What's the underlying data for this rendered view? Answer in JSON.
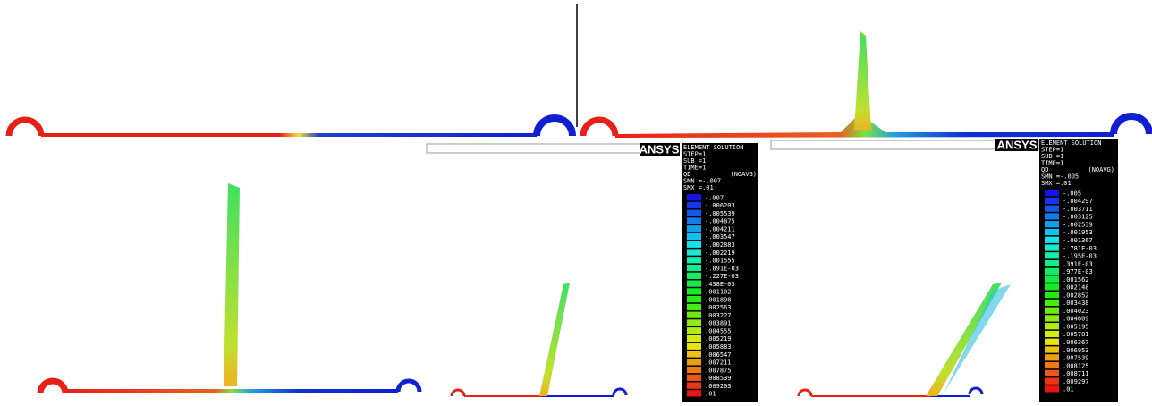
{
  "panels": [
    {
      "logo": "ANSYS",
      "legend": {
        "title": "ELEMENT SOLUTION",
        "step": "STEP=1",
        "sub": "SUB =1",
        "time": "TIME=1",
        "quantity": "QD",
        "averaging": "(NOAVG)",
        "smn": "SMN =-.007",
        "smx": "SMX =.01",
        "levels": [
          "-.007",
          "-.006203",
          "-.005539",
          "-.004875",
          "-.004211",
          "-.003547",
          "-.002883",
          "-.002219",
          "-.001555",
          "-.891E-03",
          "-.227E-03",
          ".438E-03",
          ".001102",
          ".001898",
          ".002563",
          ".003227",
          ".003891",
          ".004555",
          ".005219",
          ".005883",
          ".006547",
          ".007211",
          ".007875",
          ".008539",
          ".009203",
          ".01"
        ]
      }
    },
    {
      "logo": "ANSYS",
      "legend": {
        "title": "ELEMENT SOLUTION",
        "step": "STEP=1",
        "sub": "SUB =1",
        "time": "TIME=1",
        "quantity": "QD",
        "averaging": "(NOAVG)",
        "smn": "SMN =-.005",
        "smx": "SMX =.01",
        "levels": [
          "-.005",
          "-.004297",
          "-.003711",
          "-.003125",
          "-.002539",
          "-.001953",
          "-.001367",
          "-.781E-03",
          "-.195E-03",
          ".391E-03",
          ".977E-03",
          ".001562",
          ".002148",
          ".002852",
          ".003438",
          ".004023",
          ".004609",
          ".005195",
          ".005781",
          ".006367",
          ".006953",
          ".007539",
          ".008125",
          ".008711",
          ".009297",
          ".01"
        ]
      }
    }
  ]
}
